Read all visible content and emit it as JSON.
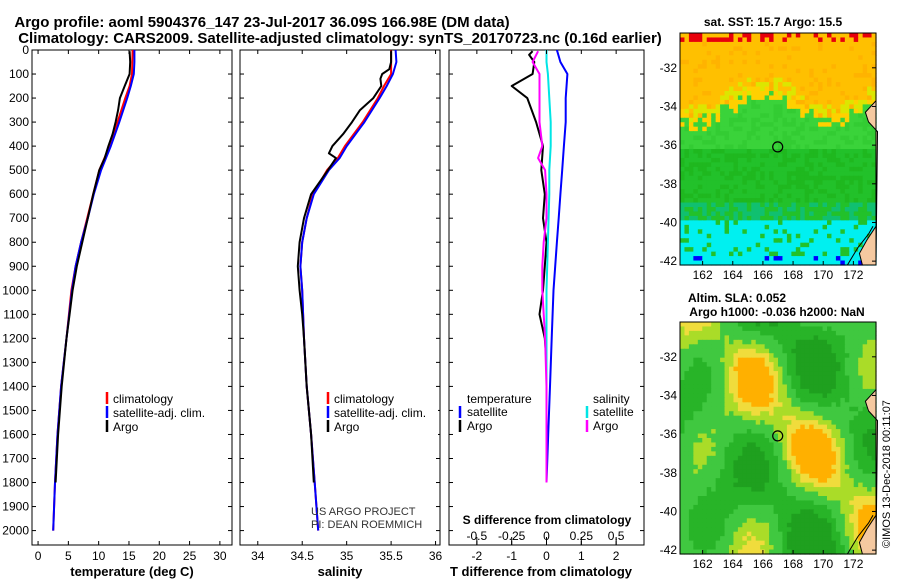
{
  "title": {
    "line1": "Argo profile: aoml 5904376_147 23-Jul-2017 36.09S 166.98E (DM data)",
    "line2": "Climatology: CARS2009. Satellite-adjusted climatology: synTS_20170723.nc (0.16d earlier)"
  },
  "colors": {
    "clim": "#ff0000",
    "sat": "#0000ff",
    "argo": "#000000",
    "sal_sat": "#00e5e5",
    "sal_clim": "#ff00ff"
  },
  "credit": {
    "line1": "US ARGO PROJECT",
    "line2": "PI: DEAN ROEMMICH"
  },
  "watermark": "©IMOS 13-Dec-2018 00:11:07",
  "chart_data": [
    {
      "id": "temperature",
      "type": "line",
      "xlabel": "temperature (deg C)",
      "xlim": [
        -1,
        32
      ],
      "xticks": [
        0,
        5,
        10,
        15,
        20,
        25,
        30
      ],
      "ylim": [
        0,
        2060
      ],
      "yticks": [
        0,
        100,
        200,
        300,
        400,
        500,
        600,
        700,
        800,
        900,
        1000,
        1100,
        1200,
        1300,
        1400,
        1500,
        1600,
        1700,
        1800,
        1900,
        2000
      ],
      "legend": [
        "climatology",
        "satellite-adj. clim.",
        "Argo"
      ],
      "series": [
        {
          "name": "climatology",
          "depth": [
            0,
            100,
            150,
            200,
            300,
            400,
            500,
            600,
            700,
            800,
            900,
            1000,
            1200,
            1400,
            1600,
            1800,
            2000
          ],
          "values": [
            15.6,
            15.5,
            15.1,
            14.4,
            13.1,
            11.8,
            10.1,
            9.1,
            8.1,
            7.1,
            6.2,
            5.5,
            4.7,
            3.8,
            3.2,
            2.8,
            2.5
          ]
        },
        {
          "name": "satellite-adj. clim.",
          "depth": [
            0,
            50,
            100,
            150,
            200,
            300,
            400,
            500,
            600,
            700,
            800,
            900,
            1000,
            1200,
            1400,
            1600,
            1800,
            2000
          ],
          "values": [
            15.9,
            15.9,
            15.8,
            15.3,
            14.7,
            13.4,
            12.0,
            10.4,
            9.2,
            8.2,
            7.1,
            6.2,
            5.6,
            4.7,
            3.8,
            3.2,
            2.8,
            2.5
          ]
        },
        {
          "name": "Argo",
          "depth": [
            5,
            50,
            100,
            150,
            200,
            250,
            300,
            350,
            400,
            450,
            500,
            600,
            700,
            800,
            900,
            1000,
            1100,
            1200,
            1400,
            1600,
            1800
          ],
          "values": [
            15.1,
            15.2,
            15.1,
            14.3,
            13.5,
            13.2,
            12.8,
            12.3,
            11.6,
            11.0,
            10.1,
            9.1,
            8.2,
            7.3,
            6.4,
            5.7,
            5.2,
            4.7,
            3.9,
            3.3,
            2.9
          ]
        }
      ]
    },
    {
      "id": "salinity",
      "type": "line",
      "xlabel": "salinity",
      "xlim": [
        33.8,
        36.05
      ],
      "xticks": [
        34,
        34.5,
        35,
        35.5,
        36
      ],
      "ylim": [
        0,
        2060
      ],
      "legend": [
        "climatology",
        "satellite-adj. clim.",
        "Argo"
      ],
      "series": [
        {
          "name": "climatology",
          "depth": [
            0,
            100,
            150,
            200,
            300,
            400,
            450,
            500,
            600,
            700,
            800,
            900,
            1000,
            1200,
            1400,
            1600,
            1800,
            2000
          ],
          "values": [
            35.5,
            35.5,
            35.42,
            35.35,
            35.18,
            34.98,
            34.9,
            34.78,
            34.62,
            34.55,
            34.5,
            34.48,
            34.5,
            34.52,
            34.55,
            34.6,
            34.64,
            34.68
          ]
        },
        {
          "name": "satellite-adj. clim.",
          "depth": [
            0,
            50,
            100,
            150,
            200,
            300,
            400,
            450,
            500,
            600,
            700,
            800,
            900,
            1000,
            1200,
            1400,
            1600,
            1800,
            2000
          ],
          "values": [
            35.55,
            35.56,
            35.52,
            35.45,
            35.37,
            35.2,
            35.0,
            34.92,
            34.8,
            34.63,
            34.55,
            34.5,
            34.48,
            34.5,
            34.52,
            34.55,
            34.6,
            34.64,
            34.68
          ]
        },
        {
          "name": "Argo",
          "depth": [
            5,
            50,
            80,
            100,
            120,
            150,
            200,
            250,
            300,
            350,
            400,
            430,
            450,
            500,
            600,
            700,
            800,
            900,
            1000,
            1100,
            1200,
            1400,
            1600,
            1800
          ],
          "values": [
            35.5,
            35.5,
            35.48,
            35.4,
            35.38,
            35.39,
            35.3,
            35.15,
            35.06,
            34.96,
            34.84,
            34.8,
            34.88,
            34.79,
            34.6,
            34.52,
            34.47,
            34.45,
            34.47,
            34.5,
            34.52,
            34.55,
            34.6,
            34.63
          ]
        }
      ]
    },
    {
      "id": "difference",
      "type": "line",
      "xlabel": "T difference from climatology",
      "xlabel2": "S difference from climatology",
      "xlim": [
        -2.8,
        2.8
      ],
      "xticks": [
        -2,
        -1,
        0,
        1,
        2
      ],
      "sticks": [
        -0.5,
        -0.25,
        0,
        0.25,
        0.5
      ],
      "sticklabels": [
        "-0.5",
        "-0.25",
        "0",
        "0.25",
        "0.5"
      ],
      "ylim": [
        0,
        2060
      ],
      "legend_temperature": {
        "title": "temperature",
        "items": [
          "satellite",
          "Argo"
        ]
      },
      "legend_salinity": {
        "title": "salinity",
        "items": [
          "satellite",
          "Argo"
        ]
      },
      "series": [
        {
          "name": "T satellite",
          "depth": [
            0,
            50,
            100,
            200,
            300,
            400,
            500,
            600,
            700,
            800,
            900,
            1000,
            1200,
            1400,
            1600,
            1800
          ],
          "values": [
            0.3,
            0.4,
            0.6,
            0.55,
            0.55,
            0.5,
            0.45,
            0.4,
            0.35,
            0.3,
            0.25,
            0.2,
            0.15,
            0.1,
            0.05,
            0.0
          ]
        },
        {
          "name": "T Argo",
          "depth": [
            5,
            20,
            50,
            100,
            150,
            200,
            300,
            400,
            500,
            600,
            700,
            800,
            900,
            1000,
            1100,
            1200,
            1300,
            1400,
            1600,
            1800
          ],
          "values": [
            -0.4,
            -0.5,
            -0.35,
            -0.4,
            -1.0,
            -0.55,
            -0.3,
            -0.1,
            -0.15,
            -0.05,
            -0.1,
            0.0,
            -0.05,
            -0.1,
            -0.2,
            -0.05,
            0.0,
            0.0,
            0.0,
            0.0
          ]
        },
        {
          "name": "S satellite",
          "depth": [
            0,
            50,
            100,
            200,
            300,
            400,
            500,
            600,
            800,
            1000,
            1200,
            1400,
            1600,
            1800
          ],
          "values": [
            0.0,
            0.0,
            0.01,
            0.02,
            0.03,
            0.03,
            0.02,
            0.02,
            0.01,
            0.0,
            0.0,
            0.0,
            0.0,
            0.0
          ]
        },
        {
          "name": "S Argo",
          "depth": [
            5,
            50,
            100,
            150,
            200,
            300,
            400,
            450,
            500,
            600,
            700,
            800,
            900,
            1000,
            1100,
            1200,
            1400,
            1600,
            1800
          ],
          "values": [
            -0.06,
            -0.1,
            -0.05,
            -0.05,
            -0.05,
            -0.05,
            -0.03,
            -0.06,
            -0.01,
            0.0,
            0.0,
            -0.02,
            -0.03,
            -0.03,
            -0.02,
            -0.01,
            0.0,
            0.0,
            0.0
          ]
        }
      ]
    },
    {
      "id": "sst_map",
      "type": "heatmap",
      "title": "sat. SST: 15.7 Argo: 15.5",
      "xticks": [
        162,
        164,
        166,
        168,
        170,
        172
      ],
      "yticks": [
        -32,
        -34,
        -36,
        -38,
        -40,
        -42
      ],
      "xlim": [
        160.5,
        173.5
      ],
      "ylim": [
        -42.2,
        -30.2
      ],
      "marker": [
        166.98,
        -36.09
      ]
    },
    {
      "id": "sla_map",
      "type": "heatmap",
      "title1": "Altim. SLA: 0.052",
      "title2": "Argo h1000: -0.036 h2000: NaN",
      "xticks": [
        162,
        164,
        166,
        168,
        170,
        172
      ],
      "yticks": [
        -32,
        -34,
        -36,
        -38,
        -40,
        -42
      ],
      "xlim": [
        160.5,
        173.5
      ],
      "ylim": [
        -42.2,
        -30.2
      ],
      "marker": [
        166.98,
        -36.09
      ]
    }
  ]
}
